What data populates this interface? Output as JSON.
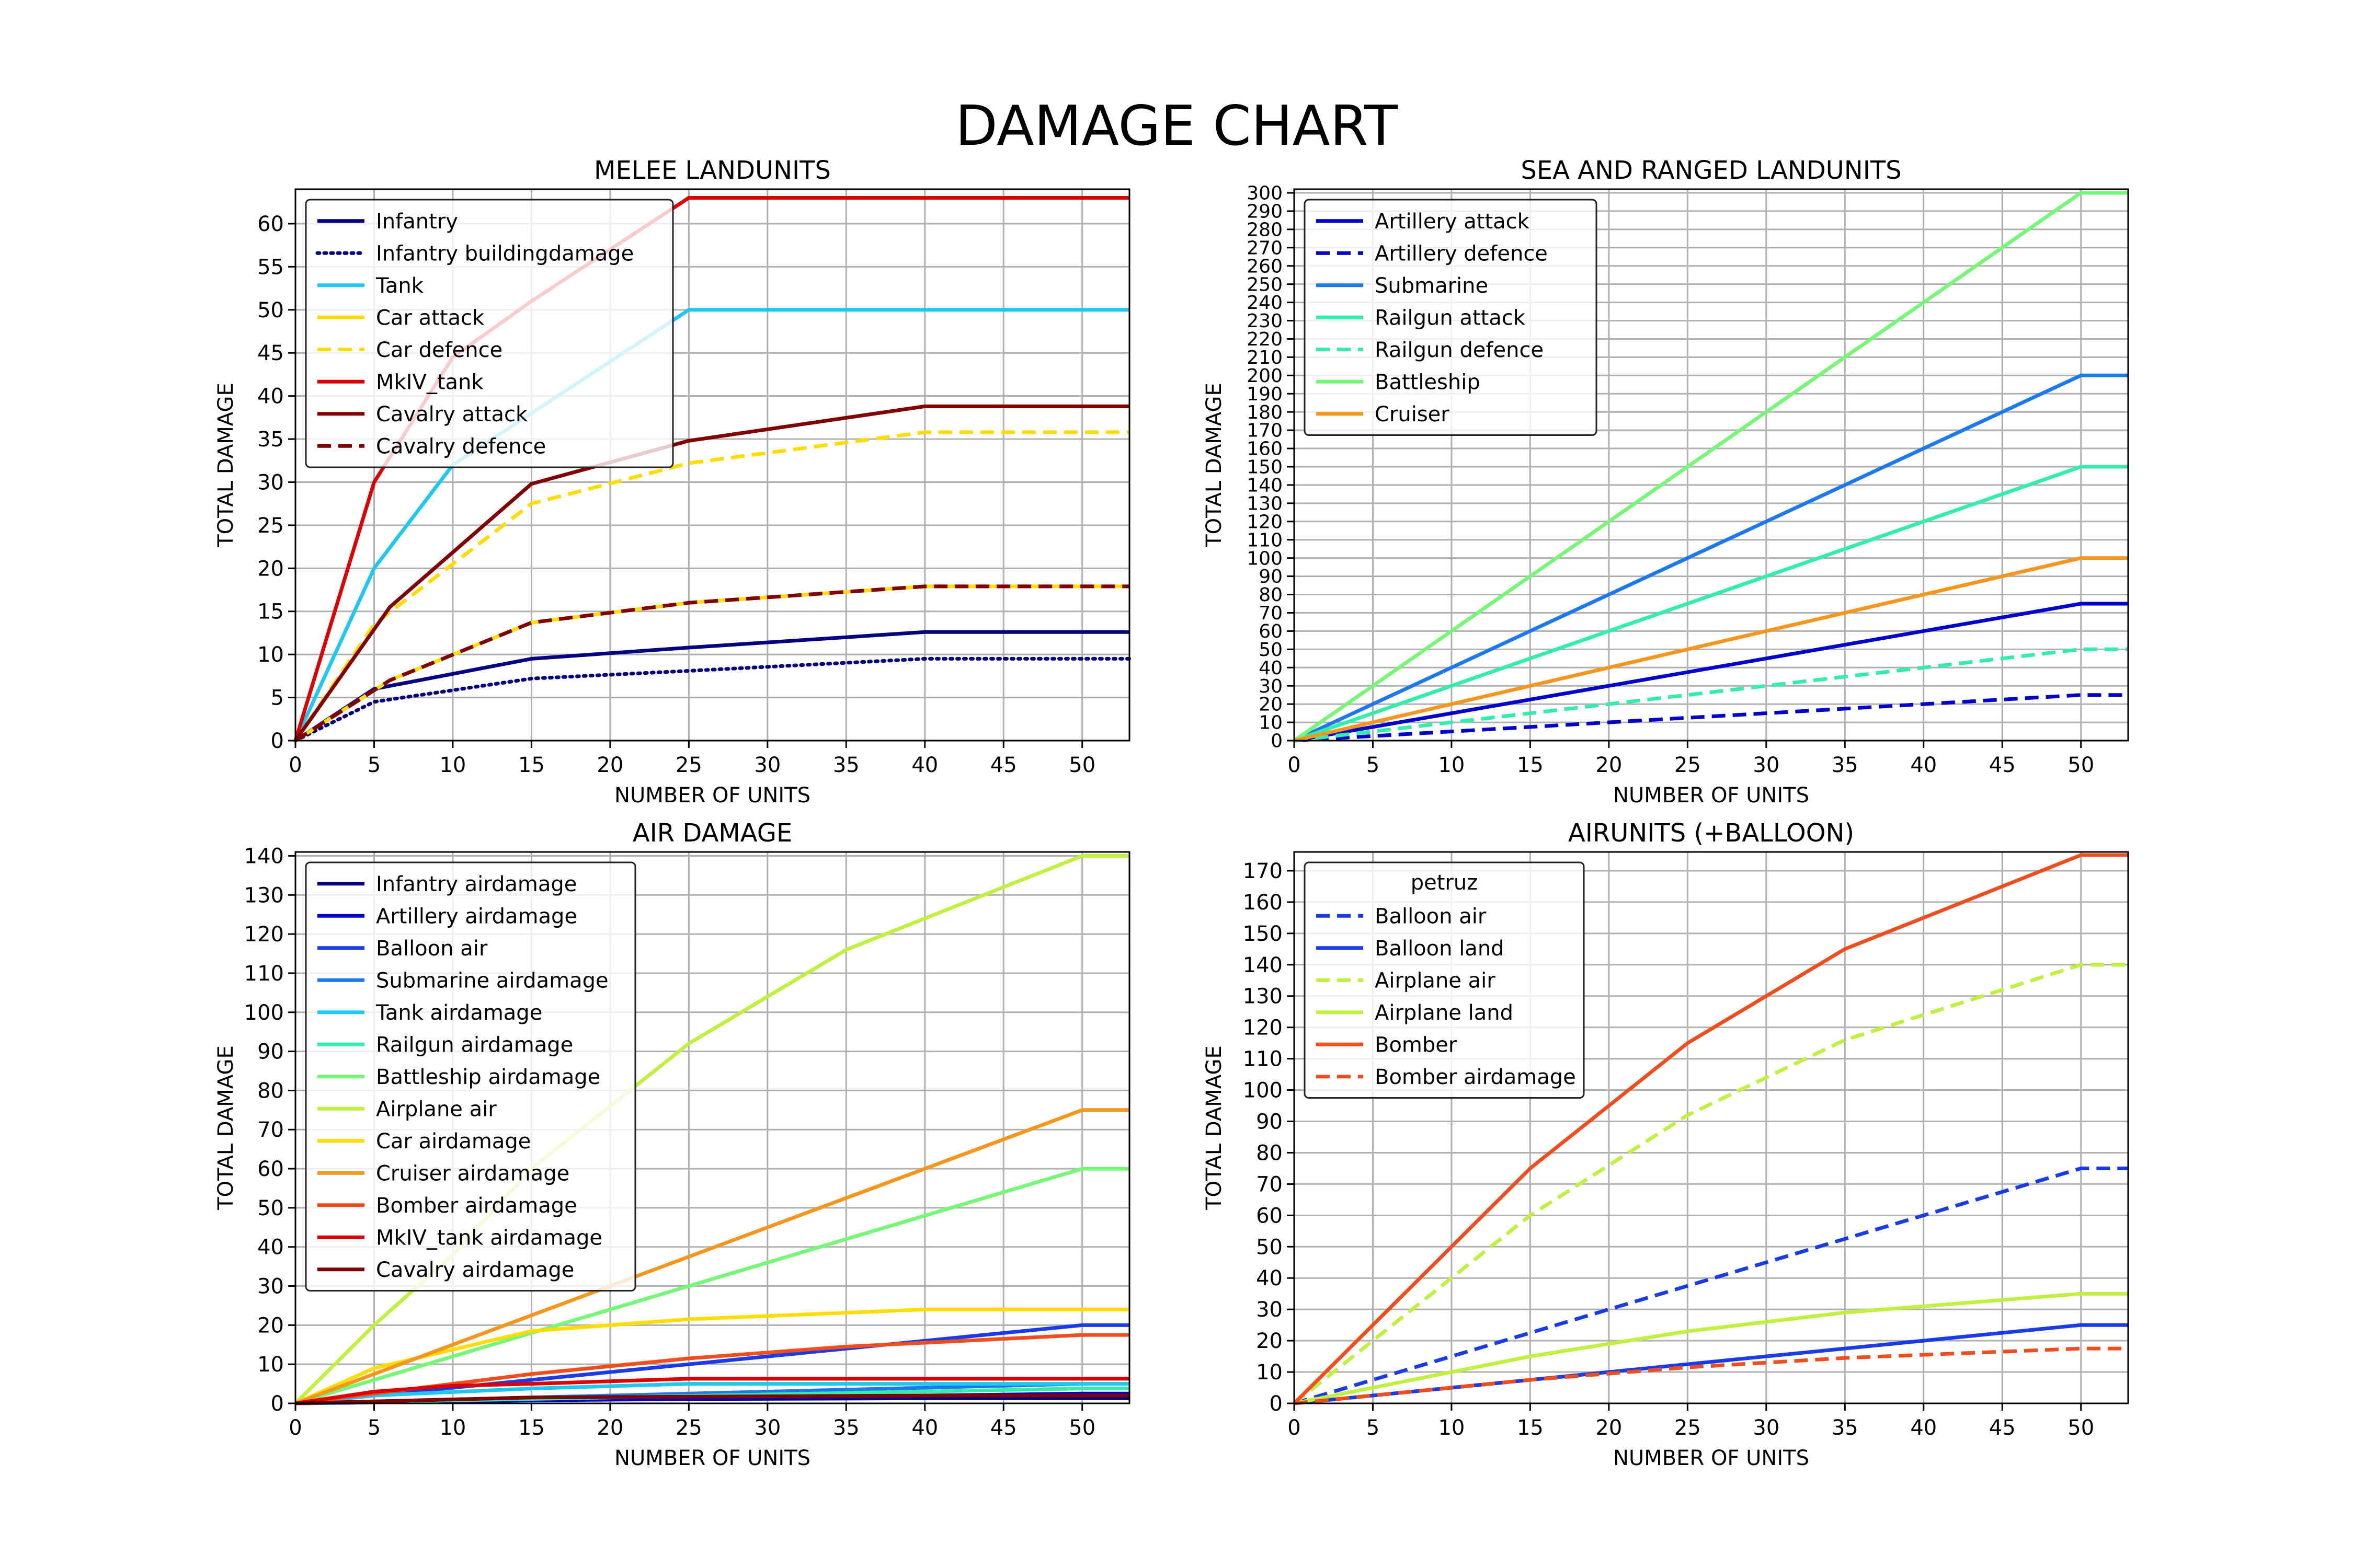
{
  "suptitle": "DAMAGE CHART",
  "chart_data": [
    {
      "type": "line",
      "title": "MELEE LANDUNITS",
      "xlabel": "NUMBER OF UNITS",
      "ylabel": "TOTAL DAMAGE",
      "xlim": [
        0,
        53
      ],
      "ylim": [
        0,
        64
      ],
      "xticks": [
        0,
        5,
        10,
        15,
        20,
        25,
        30,
        35,
        40,
        45,
        50
      ],
      "yticks": [
        0,
        5,
        10,
        15,
        20,
        25,
        30,
        35,
        40,
        45,
        50,
        55,
        60
      ],
      "grid": true,
      "legend": {
        "placement": "top-left"
      },
      "series": [
        {
          "name": "Infantry",
          "color": "#000080",
          "dash": "solid",
          "points": [
            [
              0,
              0
            ],
            [
              5,
              6
            ],
            [
              15,
              9.5
            ],
            [
              25,
              10.8
            ],
            [
              40,
              12.6
            ],
            [
              53,
              12.6
            ]
          ]
        },
        {
          "name": "Infantry buildingdamage",
          "color": "#000080",
          "dash": "dotted",
          "points": [
            [
              0,
              0
            ],
            [
              5,
              4.5
            ],
            [
              15,
              7.2
            ],
            [
              25,
              8.1
            ],
            [
              40,
              9.5
            ],
            [
              53,
              9.5
            ]
          ]
        },
        {
          "name": "Tank",
          "color": "#1ec8f0",
          "dash": "solid",
          "points": [
            [
              0,
              0
            ],
            [
              5,
              20
            ],
            [
              10,
              32
            ],
            [
              15,
              38
            ],
            [
              25,
              50
            ],
            [
              53,
              50
            ]
          ]
        },
        {
          "name": "Car attack",
          "color": "#ffdd00",
          "dash": "solid",
          "points": [
            [
              0,
              0
            ],
            [
              6,
              7
            ],
            [
              15,
              13.7
            ],
            [
              25,
              16
            ],
            [
              40,
              17.9
            ],
            [
              53,
              17.9
            ]
          ]
        },
        {
          "name": "Car defence",
          "color": "#ffdd00",
          "dash": "dashed",
          "points": [
            [
              0,
              0
            ],
            [
              5,
              13.5
            ],
            [
              10,
              20.5
            ],
            [
              15,
              27.5
            ],
            [
              25,
              32.2
            ],
            [
              40,
              35.8
            ],
            [
              53,
              35.8
            ]
          ]
        },
        {
          "name": "MkIV_tank",
          "color": "#dd0000",
          "dash": "solid",
          "points": [
            [
              0,
              0
            ],
            [
              5,
              30
            ],
            [
              10,
              44.5
            ],
            [
              15,
              51
            ],
            [
              25,
              63
            ],
            [
              53,
              63
            ]
          ]
        },
        {
          "name": "Cavalry attack",
          "color": "#800000",
          "dash": "solid",
          "points": [
            [
              0,
              0
            ],
            [
              6,
              15.5
            ],
            [
              15,
              29.8
            ],
            [
              25,
              34.8
            ],
            [
              40,
              38.8
            ],
            [
              53,
              38.8
            ]
          ]
        },
        {
          "name": "Cavalry defence",
          "color": "#800000",
          "dash": "dashed",
          "points": [
            [
              0,
              0
            ],
            [
              6,
              7
            ],
            [
              15,
              13.7
            ],
            [
              25,
              16
            ],
            [
              40,
              17.9
            ],
            [
              53,
              17.9
            ]
          ]
        }
      ]
    },
    {
      "type": "line",
      "title": "SEA AND RANGED LANDUNITS",
      "xlabel": "NUMBER OF UNITS",
      "ylabel": "TOTAL DAMAGE",
      "xlim": [
        0,
        53
      ],
      "ylim": [
        0,
        302
      ],
      "xticks": [
        0,
        5,
        10,
        15,
        20,
        25,
        30,
        35,
        40,
        45,
        50
      ],
      "yticks": [
        0,
        10,
        20,
        30,
        40,
        50,
        60,
        70,
        80,
        90,
        100,
        110,
        120,
        130,
        140,
        150,
        160,
        170,
        180,
        190,
        200,
        210,
        220,
        230,
        240,
        250,
        260,
        270,
        280,
        290,
        300
      ],
      "grid": true,
      "legend": {
        "placement": "top-left"
      },
      "series": [
        {
          "name": "Artillery attack",
          "color": "#0000cd",
          "dash": "solid",
          "points": [
            [
              0,
              0
            ],
            [
              50,
              75
            ],
            [
              53,
              75
            ]
          ]
        },
        {
          "name": "Artillery defence",
          "color": "#0000cd",
          "dash": "dashed",
          "points": [
            [
              0,
              0
            ],
            [
              50,
              25
            ],
            [
              53,
              25
            ]
          ]
        },
        {
          "name": "Submarine",
          "color": "#1e78f0",
          "dash": "solid",
          "points": [
            [
              0,
              0
            ],
            [
              50,
              200
            ],
            [
              53,
              200
            ]
          ]
        },
        {
          "name": "Railgun attack",
          "color": "#33eeaa",
          "dash": "solid",
          "points": [
            [
              0,
              0
            ],
            [
              50,
              150
            ],
            [
              53,
              150
            ]
          ]
        },
        {
          "name": "Railgun defence",
          "color": "#33eeaa",
          "dash": "dashed",
          "points": [
            [
              0,
              0
            ],
            [
              50,
              50
            ],
            [
              53,
              50
            ]
          ]
        },
        {
          "name": "Battleship",
          "color": "#77f777",
          "dash": "solid",
          "points": [
            [
              0,
              0
            ],
            [
              50,
              300
            ],
            [
              53,
              300
            ]
          ]
        },
        {
          "name": "Cruiser",
          "color": "#f5961e",
          "dash": "solid",
          "points": [
            [
              0,
              0
            ],
            [
              50,
              100
            ],
            [
              53,
              100
            ]
          ]
        }
      ]
    },
    {
      "type": "line",
      "title": "AIR DAMAGE",
      "xlabel": "NUMBER OF UNITS",
      "ylabel": "TOTAL DAMAGE",
      "xlim": [
        0,
        53
      ],
      "ylim": [
        0,
        141
      ],
      "xticks": [
        0,
        5,
        10,
        15,
        20,
        25,
        30,
        35,
        40,
        45,
        50
      ],
      "yticks": [
        0,
        10,
        20,
        30,
        40,
        50,
        60,
        70,
        80,
        90,
        100,
        110,
        120,
        130,
        140
      ],
      "grid": true,
      "legend": {
        "placement": "top-left"
      },
      "series": [
        {
          "name": "Infantry airdamage",
          "color": "#000080",
          "dash": "solid",
          "points": [
            [
              0,
              0
            ],
            [
              15,
              0.8
            ],
            [
              25,
              1.1
            ],
            [
              40,
              1.3
            ],
            [
              53,
              1.3
            ]
          ]
        },
        {
          "name": "Artillery airdamage",
          "color": "#0000cd",
          "dash": "solid",
          "points": [
            [
              0,
              0
            ],
            [
              50,
              2.5
            ],
            [
              53,
              2.5
            ]
          ]
        },
        {
          "name": "Balloon air",
          "color": "#1a3ce8",
          "dash": "solid",
          "points": [
            [
              0,
              0
            ],
            [
              10,
              4
            ],
            [
              25,
              10
            ],
            [
              50,
              20
            ],
            [
              53,
              20
            ]
          ]
        },
        {
          "name": "Submarine airdamage",
          "color": "#1e78f0",
          "dash": "solid",
          "points": [
            [
              0,
              0
            ],
            [
              50,
              5
            ],
            [
              53,
              5
            ]
          ]
        },
        {
          "name": "Tank airdamage",
          "color": "#1ec8f0",
          "dash": "solid",
          "points": [
            [
              0,
              0
            ],
            [
              5,
              2
            ],
            [
              15,
              3.8
            ],
            [
              25,
              5
            ],
            [
              53,
              5
            ]
          ]
        },
        {
          "name": "Railgun airdamage",
          "color": "#33eeaa",
          "dash": "solid",
          "points": [
            [
              0,
              0
            ],
            [
              50,
              3.8
            ],
            [
              53,
              3.8
            ]
          ]
        },
        {
          "name": "Battleship airdamage",
          "color": "#77f777",
          "dash": "solid",
          "points": [
            [
              0,
              0
            ],
            [
              50,
              60
            ],
            [
              53,
              60
            ]
          ]
        },
        {
          "name": "Airplane air",
          "color": "#c0f040",
          "dash": "solid",
          "points": [
            [
              0,
              0
            ],
            [
              5,
              20
            ],
            [
              10,
              38
            ],
            [
              15,
              60
            ],
            [
              25,
              92
            ],
            [
              35,
              116
            ],
            [
              40,
              124
            ],
            [
              50,
              140
            ],
            [
              53,
              140
            ]
          ]
        },
        {
          "name": "Car airdamage",
          "color": "#ffdd00",
          "dash": "solid",
          "points": [
            [
              0,
              0
            ],
            [
              5,
              9
            ],
            [
              15,
              18.5
            ],
            [
              25,
              21.5
            ],
            [
              40,
              24
            ],
            [
              53,
              24
            ]
          ]
        },
        {
          "name": "Cruiser airdamage",
          "color": "#f5961e",
          "dash": "solid",
          "points": [
            [
              0,
              0
            ],
            [
              50,
              75
            ],
            [
              53,
              75
            ]
          ]
        },
        {
          "name": "Bomber airdamage",
          "color": "#f04e1e",
          "dash": "solid",
          "points": [
            [
              0,
              0
            ],
            [
              10,
              5
            ],
            [
              15,
              7.5
            ],
            [
              25,
              11.5
            ],
            [
              35,
              14.5
            ],
            [
              40,
              15.5
            ],
            [
              50,
              17.5
            ],
            [
              53,
              17.5
            ]
          ]
        },
        {
          "name": "MkIV_tank airdamage",
          "color": "#dd0000",
          "dash": "solid",
          "points": [
            [
              0,
              0
            ],
            [
              5,
              3
            ],
            [
              10,
              4.5
            ],
            [
              15,
              5
            ],
            [
              25,
              6.3
            ],
            [
              53,
              6.3
            ]
          ]
        },
        {
          "name": "Cavalry airdamage",
          "color": "#800000",
          "dash": "solid",
          "points": [
            [
              0,
              0
            ],
            [
              15,
              1.5
            ],
            [
              25,
              1.7
            ],
            [
              40,
              2
            ],
            [
              53,
              2
            ]
          ]
        }
      ]
    },
    {
      "type": "line",
      "title": "AIRUNITS (+BALLOON)",
      "xlabel": "NUMBER OF UNITS",
      "ylabel": "TOTAL DAMAGE",
      "xlim": [
        0,
        53
      ],
      "ylim": [
        0,
        176
      ],
      "xticks": [
        0,
        5,
        10,
        15,
        20,
        25,
        30,
        35,
        40,
        45,
        50
      ],
      "yticks": [
        0,
        10,
        20,
        30,
        40,
        50,
        60,
        70,
        80,
        90,
        100,
        110,
        120,
        130,
        140,
        150,
        160,
        170
      ],
      "grid": true,
      "legend": {
        "placement": "top-left",
        "title": "petruz"
      },
      "series": [
        {
          "name": "Balloon air",
          "color": "#1a3ce8",
          "dash": "dashed",
          "points": [
            [
              0,
              0
            ],
            [
              50,
              75
            ],
            [
              53,
              75
            ]
          ]
        },
        {
          "name": "Balloon land",
          "color": "#1a3ce8",
          "dash": "solid",
          "points": [
            [
              0,
              0
            ],
            [
              10,
              5
            ],
            [
              25,
              12.5
            ],
            [
              50,
              25
            ],
            [
              53,
              25
            ]
          ]
        },
        {
          "name": "Airplane air",
          "color": "#c0f040",
          "dash": "dashed",
          "points": [
            [
              0,
              0
            ],
            [
              5,
              20
            ],
            [
              10,
              40
            ],
            [
              15,
              60
            ],
            [
              25,
              92
            ],
            [
              35,
              116
            ],
            [
              40,
              124
            ],
            [
              50,
              140
            ],
            [
              53,
              140
            ]
          ]
        },
        {
          "name": "Airplane land",
          "color": "#c0f040",
          "dash": "solid",
          "points": [
            [
              0,
              0
            ],
            [
              5,
              5
            ],
            [
              15,
              15
            ],
            [
              25,
              23
            ],
            [
              35,
              29
            ],
            [
              40,
              31
            ],
            [
              50,
              35
            ],
            [
              53,
              35
            ]
          ]
        },
        {
          "name": "Bomber",
          "color": "#f04e1e",
          "dash": "solid",
          "points": [
            [
              0,
              0
            ],
            [
              5,
              25
            ],
            [
              10,
              50
            ],
            [
              15,
              75
            ],
            [
              25,
              115
            ],
            [
              35,
              145
            ],
            [
              40,
              155
            ],
            [
              50,
              175
            ],
            [
              53,
              175
            ]
          ]
        },
        {
          "name": "Bomber airdamage",
          "color": "#f04e1e",
          "dash": "dashed",
          "points": [
            [
              0,
              0
            ],
            [
              10,
              5
            ],
            [
              15,
              7.5
            ],
            [
              25,
              11.5
            ],
            [
              35,
              14.5
            ],
            [
              40,
              15.5
            ],
            [
              50,
              17.5
            ],
            [
              53,
              17.5
            ]
          ]
        }
      ]
    }
  ]
}
